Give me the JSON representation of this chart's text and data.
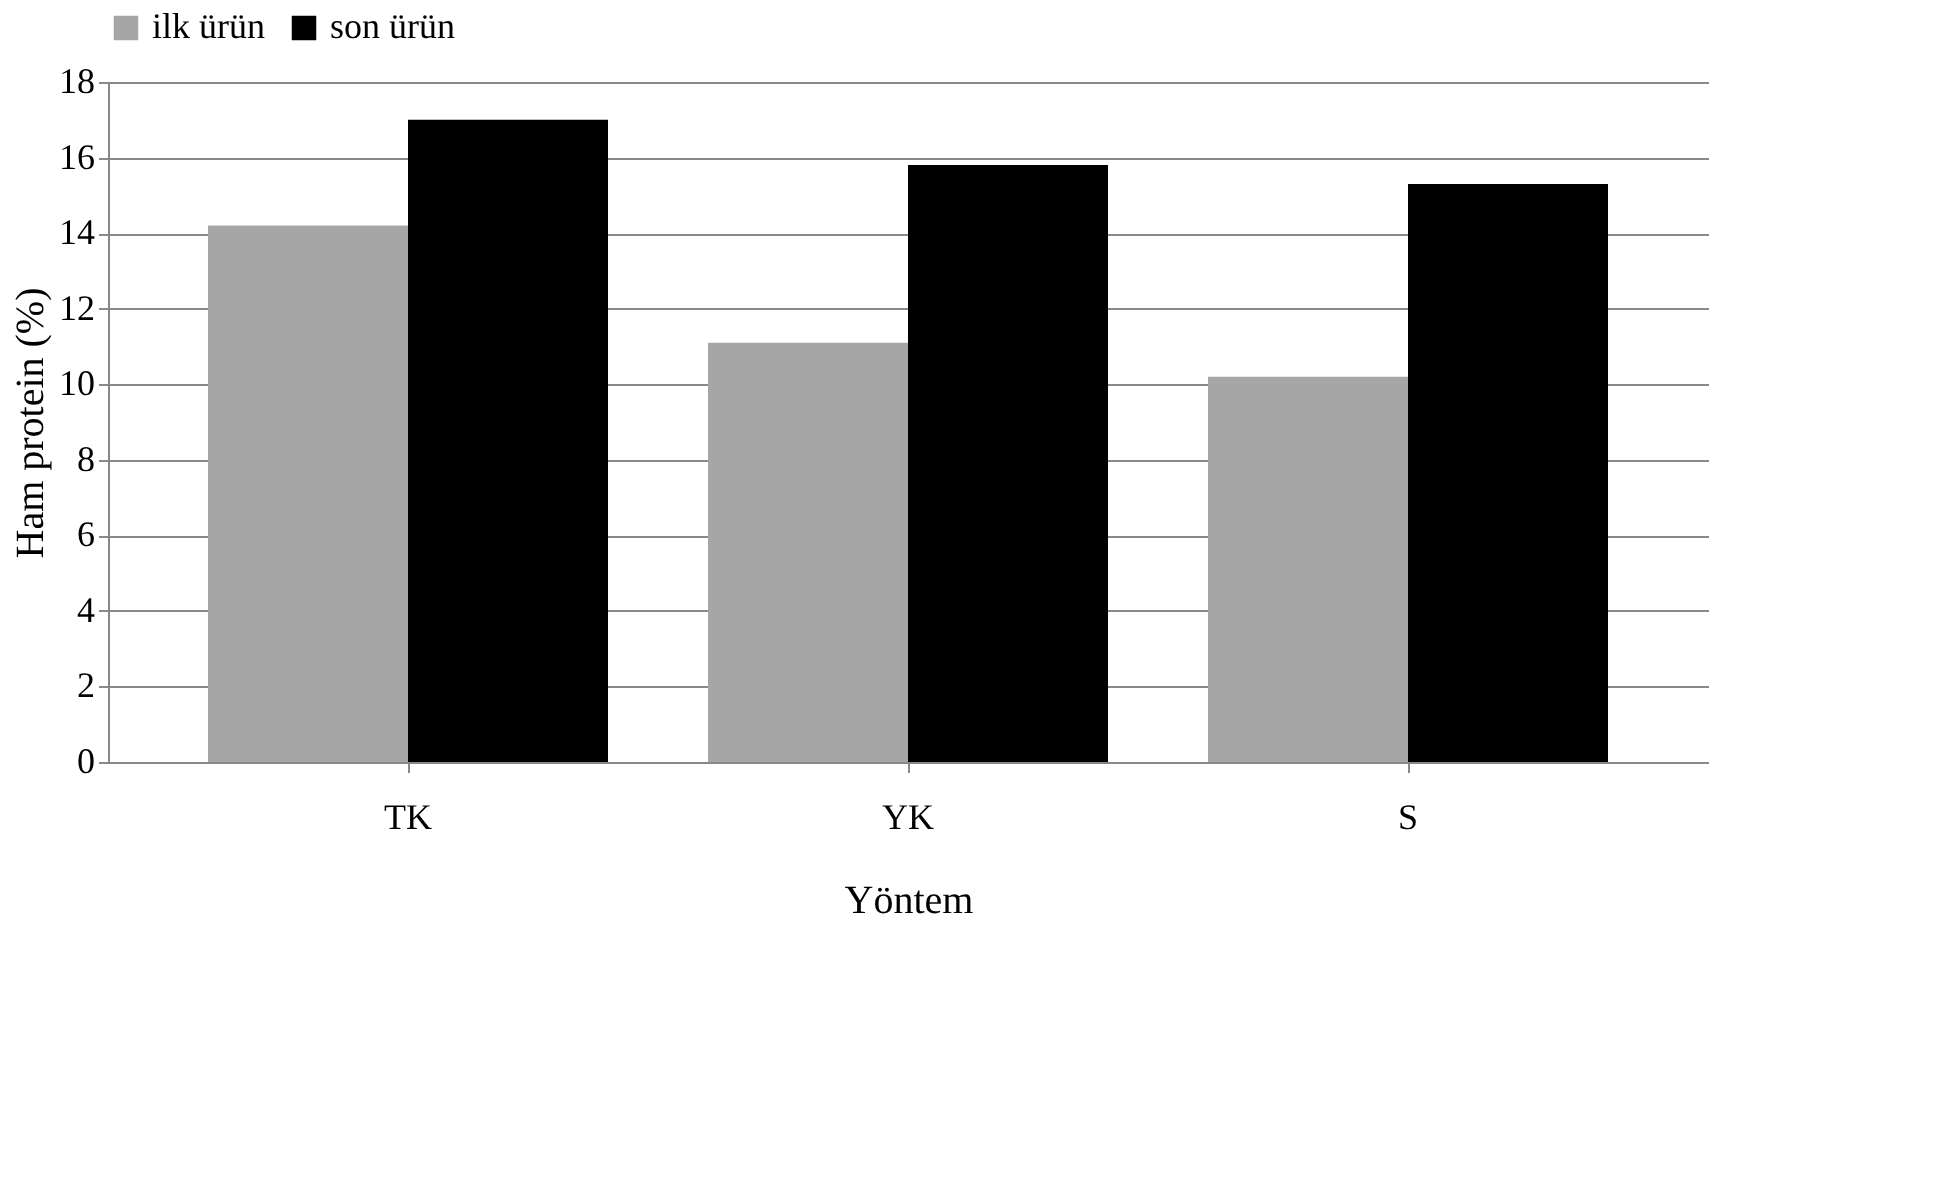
{
  "chart_data": {
    "type": "bar",
    "xlabel": "Yöntem",
    "ylabel": "Ham protein (%)",
    "categories": [
      "TK",
      "YK",
      "S"
    ],
    "series": [
      {
        "name": "ilk ürün",
        "color": "#a6a6a6",
        "values": [
          14.2,
          11.1,
          10.2
        ]
      },
      {
        "name": "son ürün",
        "color": "#000000",
        "values": [
          17.0,
          15.8,
          15.3
        ]
      }
    ],
    "ylim": [
      0,
      18
    ],
    "yticks": [
      0,
      2,
      4,
      6,
      8,
      10,
      12,
      14,
      16,
      18
    ],
    "grid": "y",
    "legend": "top"
  }
}
